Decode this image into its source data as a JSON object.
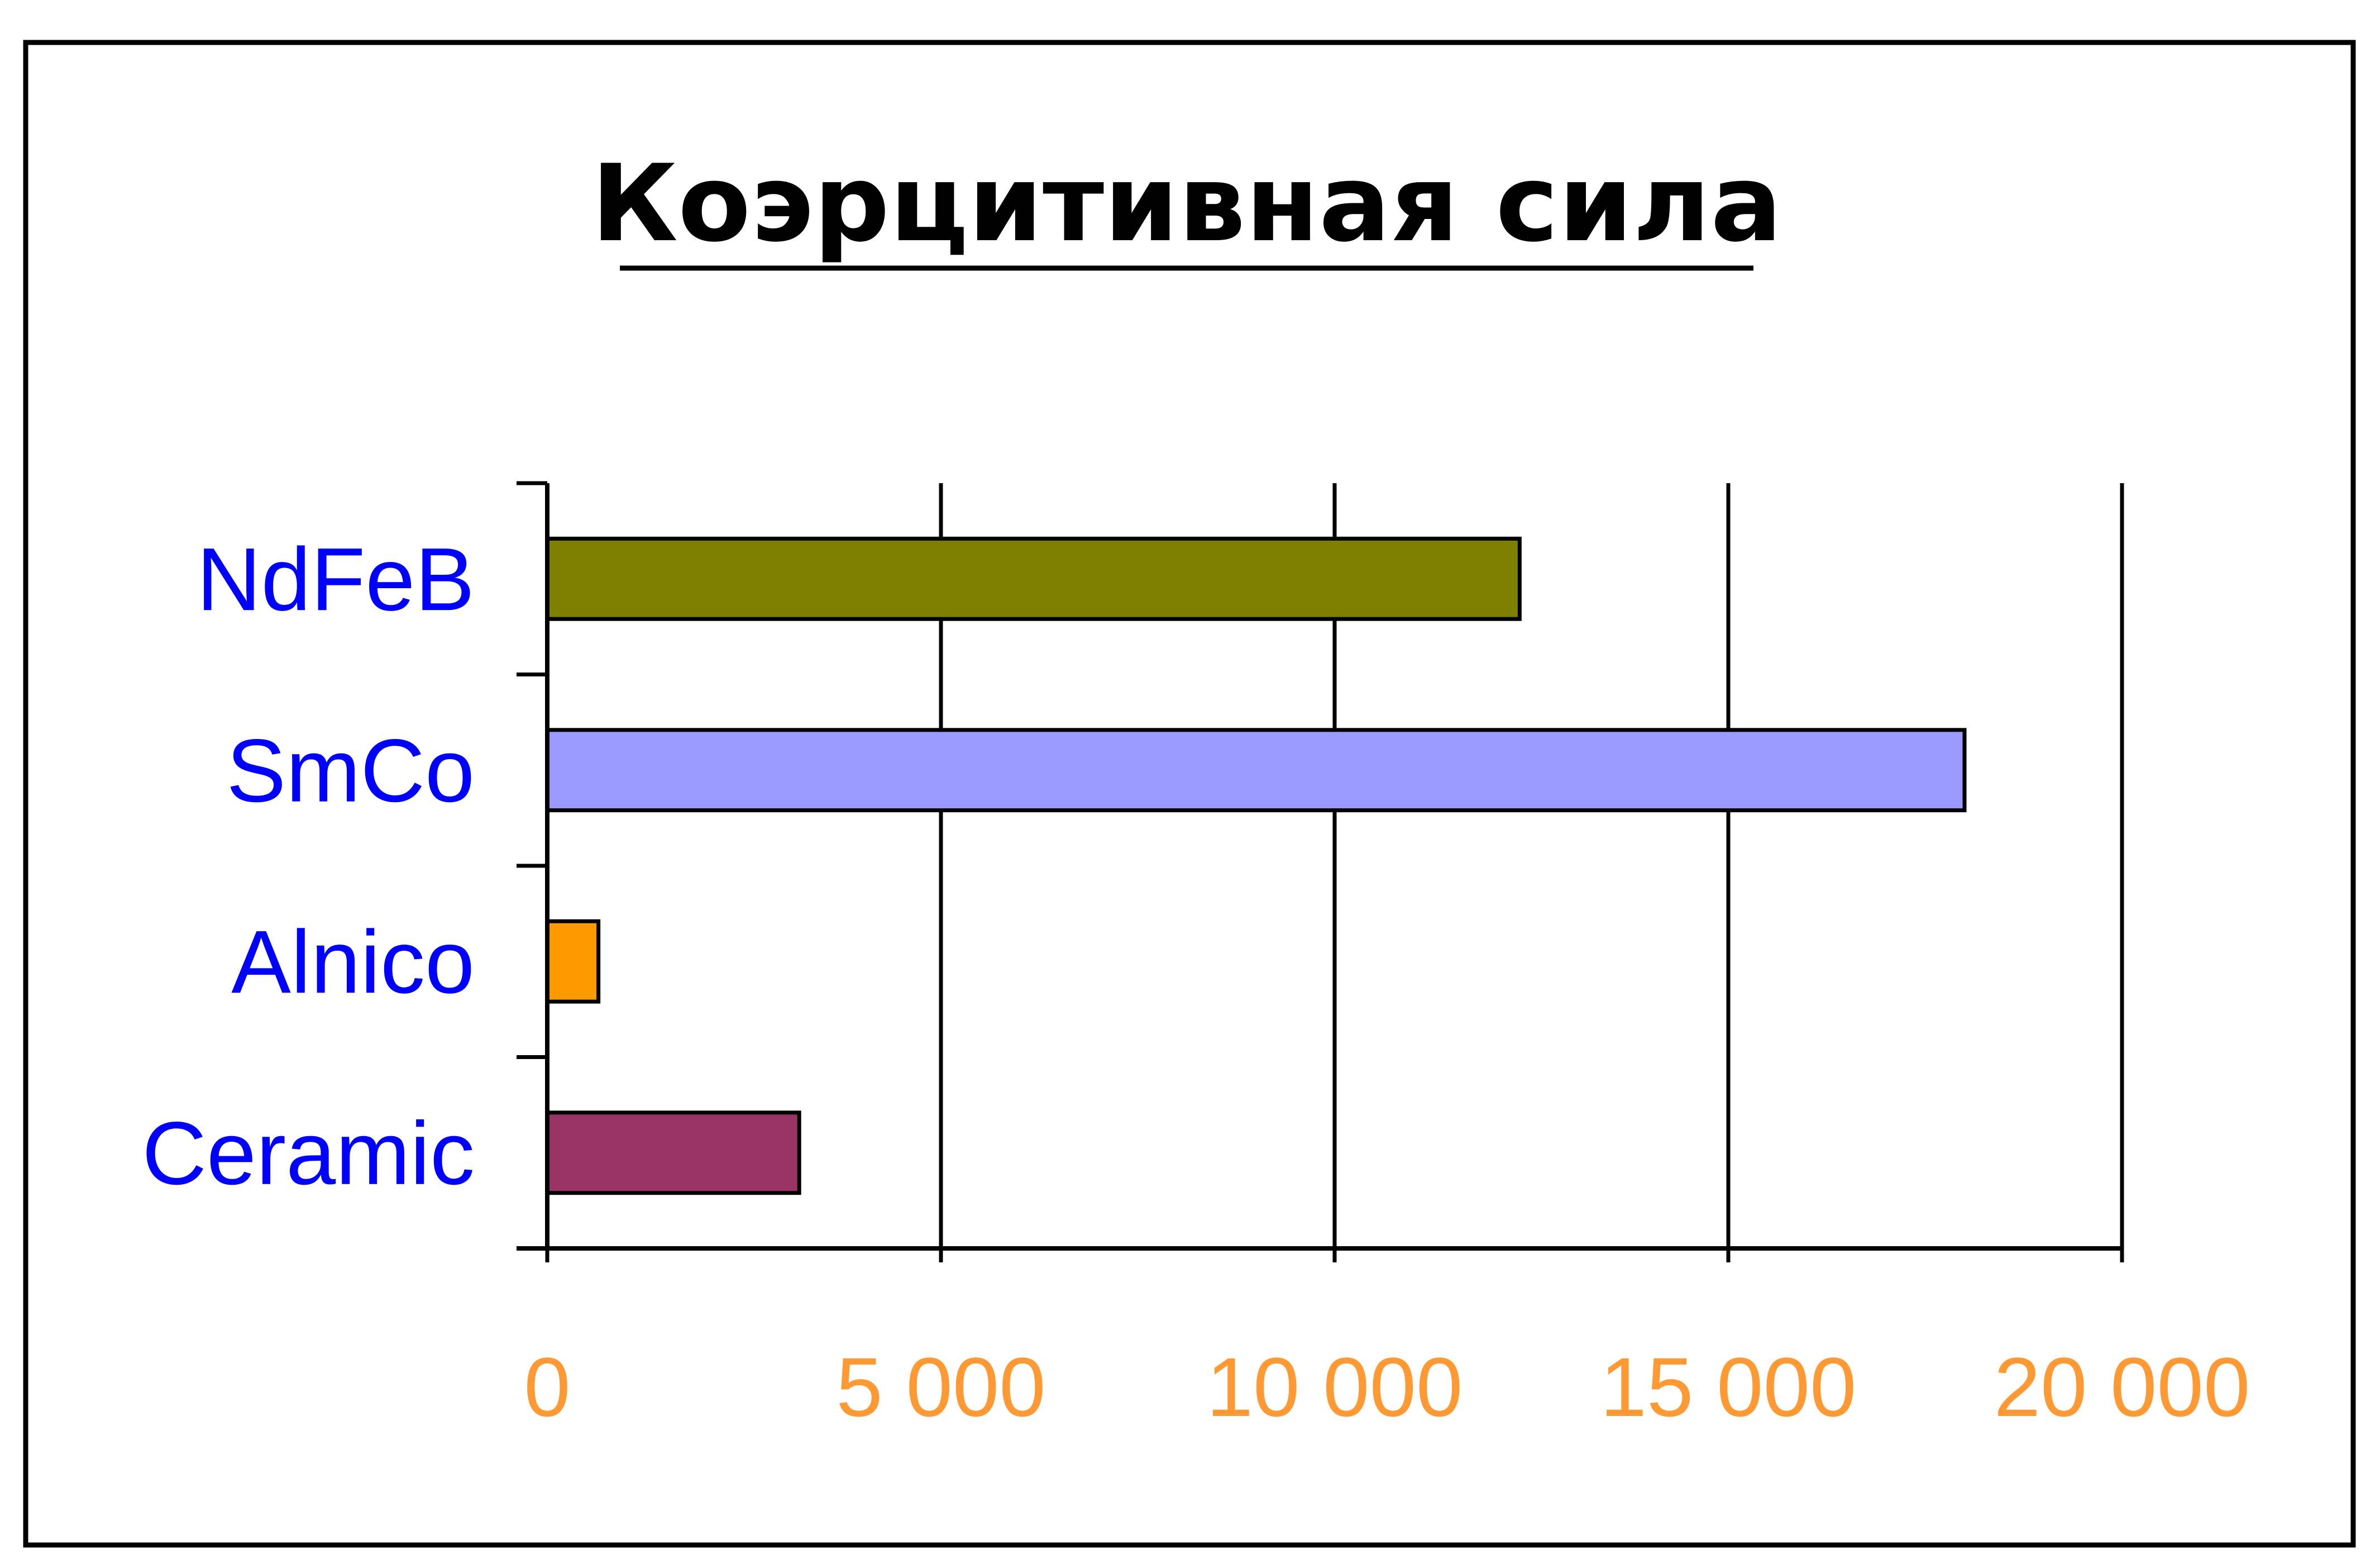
{
  "chart_data": {
    "type": "bar",
    "orientation": "horizontal",
    "title": "Коэрцитивная сила",
    "categories": [
      "NdFeB",
      "SmCo",
      "Alnico",
      "Ceramic"
    ],
    "values": [
      12350,
      18000,
      650,
      3200
    ],
    "bar_colors": [
      "#808000",
      "#9999ff",
      "#ff9900",
      "#993366"
    ],
    "xlim": [
      0,
      20000
    ],
    "xticks": [
      0,
      5000,
      10000,
      15000,
      20000
    ],
    "xtick_labels": [
      "0",
      "5 000",
      "10 000",
      "15 000",
      "20 000"
    ],
    "xlabel": "",
    "ylabel": "",
    "grid": "vertical",
    "legend": "none"
  },
  "colors": {
    "category_label": "#0000ff",
    "tick_label": "#ff9933",
    "title": "#000000",
    "axis": "#000000",
    "border": "#000000"
  }
}
